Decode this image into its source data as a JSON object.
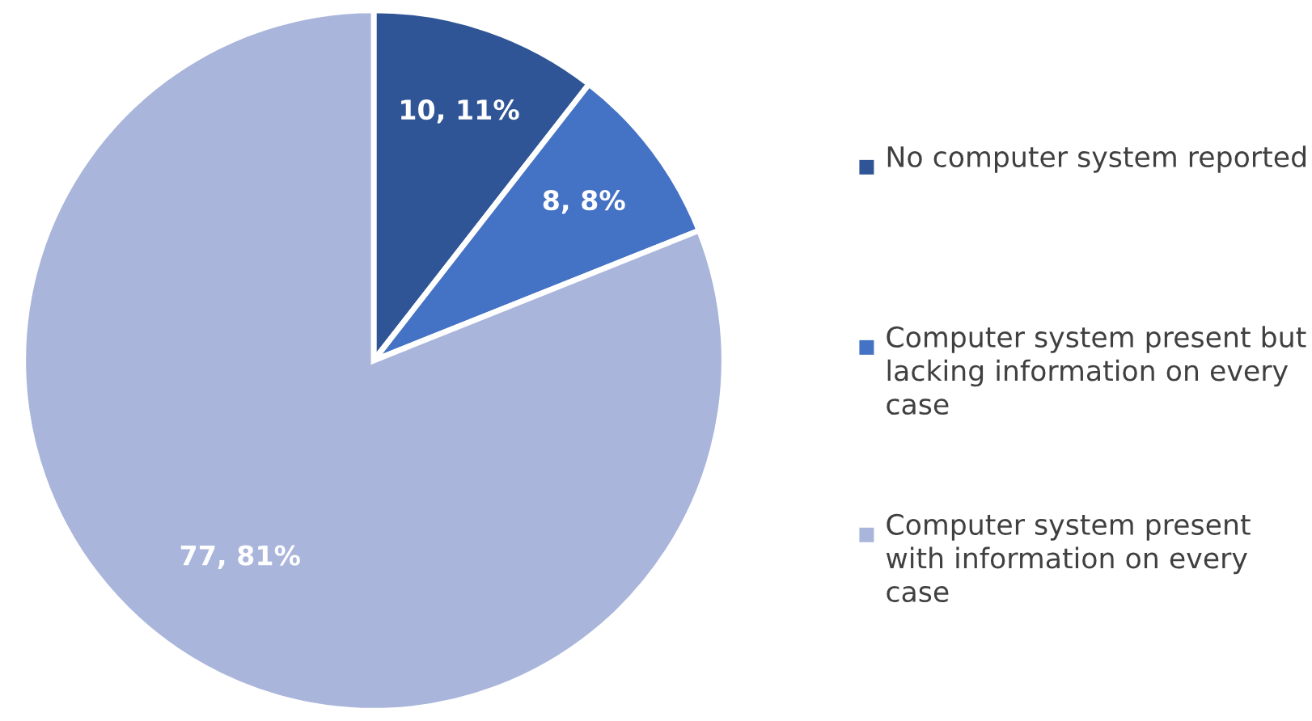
{
  "chart_data": {
    "type": "pie",
    "categories": [
      "No computer system reported",
      "Computer system present but lacking information on every case",
      "Computer system present with information on every case"
    ],
    "values": [
      10,
      8,
      77
    ],
    "value_labels": [
      "10, 11%",
      "8, 8%",
      "77, 81%"
    ],
    "colors": [
      "#2f5597",
      "#4472c4",
      "#a9b5db"
    ],
    "legend": "right"
  }
}
